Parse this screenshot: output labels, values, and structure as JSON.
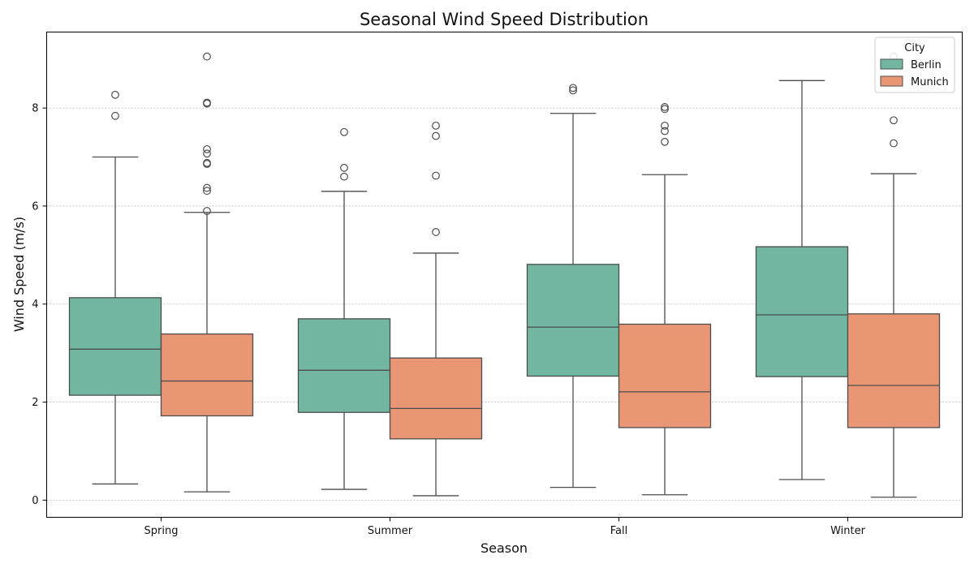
{
  "chart_data": {
    "type": "box",
    "title": "Seasonal Wind Speed Distribution",
    "xlabel": "Season",
    "ylabel": "Wind Speed (m/s)",
    "categories": [
      "Spring",
      "Summer",
      "Fall",
      "Winter"
    ],
    "y_ticks": [
      0,
      2,
      4,
      6,
      8
    ],
    "ylim": [
      -0.35,
      9.55
    ],
    "grid": "y-dashed",
    "legend": {
      "title": "City",
      "placement": "top-right"
    },
    "series": [
      {
        "name": "Berlin",
        "color": "#72b6a1",
        "boxes": [
          {
            "category": "Spring",
            "whisker_low": 0.33,
            "q1": 2.14,
            "median": 3.08,
            "q3": 4.13,
            "whisker_high": 7.0,
            "outliers": [
              7.84,
              8.27
            ]
          },
          {
            "category": "Summer",
            "whisker_low": 0.22,
            "q1": 1.79,
            "median": 2.65,
            "q3": 3.7,
            "whisker_high": 6.3,
            "outliers": [
              6.6,
              6.78,
              7.51
            ]
          },
          {
            "category": "Fall",
            "whisker_low": 0.26,
            "q1": 2.53,
            "median": 3.53,
            "q3": 4.81,
            "whisker_high": 7.89,
            "outliers": [
              8.36,
              8.41
            ]
          },
          {
            "category": "Winter",
            "whisker_low": 0.42,
            "q1": 2.52,
            "median": 3.78,
            "q3": 5.17,
            "whisker_high": 8.56,
            "outliers": []
          }
        ]
      },
      {
        "name": "Munich",
        "color": "#e99675",
        "boxes": [
          {
            "category": "Spring",
            "whisker_low": 0.17,
            "q1": 1.72,
            "median": 2.43,
            "q3": 3.39,
            "whisker_high": 5.87,
            "outliers": [
              5.9,
              6.31,
              6.37,
              6.86,
              6.88,
              7.07,
              7.16,
              8.09,
              8.11,
              9.05
            ]
          },
          {
            "category": "Summer",
            "whisker_low": 0.09,
            "q1": 1.25,
            "median": 1.87,
            "q3": 2.9,
            "whisker_high": 5.04,
            "outliers": [
              5.47,
              6.62,
              7.43,
              7.64
            ]
          },
          {
            "category": "Fall",
            "whisker_low": 0.11,
            "q1": 1.48,
            "median": 2.21,
            "q3": 3.59,
            "whisker_high": 6.64,
            "outliers": [
              7.31,
              7.53,
              7.64,
              7.98,
              8.02
            ]
          },
          {
            "category": "Winter",
            "whisker_low": 0.06,
            "q1": 1.48,
            "median": 2.34,
            "q3": 3.8,
            "whisker_high": 6.66,
            "outliers": [
              7.28,
              7.75,
              9.05
            ]
          }
        ]
      }
    ]
  }
}
